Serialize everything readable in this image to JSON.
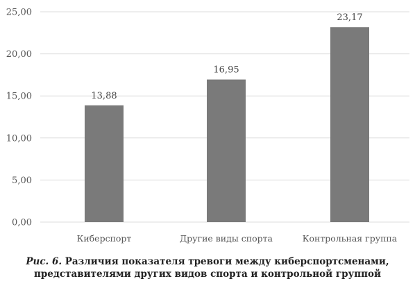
{
  "caption": {
    "figure_label": "Рис. 6.",
    "line1": "Различия показателя тревоги между киберспортсменами,",
    "line2": "представителями других видов спорта и контрольной группой"
  },
  "chart_data": {
    "type": "bar",
    "categories": [
      "Киберспорт",
      "Другие виды спорта",
      "Контрольная группа"
    ],
    "values": [
      13.88,
      16.95,
      23.17
    ],
    "value_labels": [
      "13,88",
      "16,95",
      "23,17"
    ],
    "ylim": [
      0,
      25
    ],
    "yticks": [
      0,
      5,
      10,
      15,
      20,
      25
    ],
    "ytick_labels": [
      "0,00",
      "5,00",
      "10,00",
      "15,00",
      "20,00",
      "25,00"
    ],
    "grid": true,
    "bar_color": "#7a7a7a",
    "title": "",
    "xlabel": "",
    "ylabel": ""
  }
}
